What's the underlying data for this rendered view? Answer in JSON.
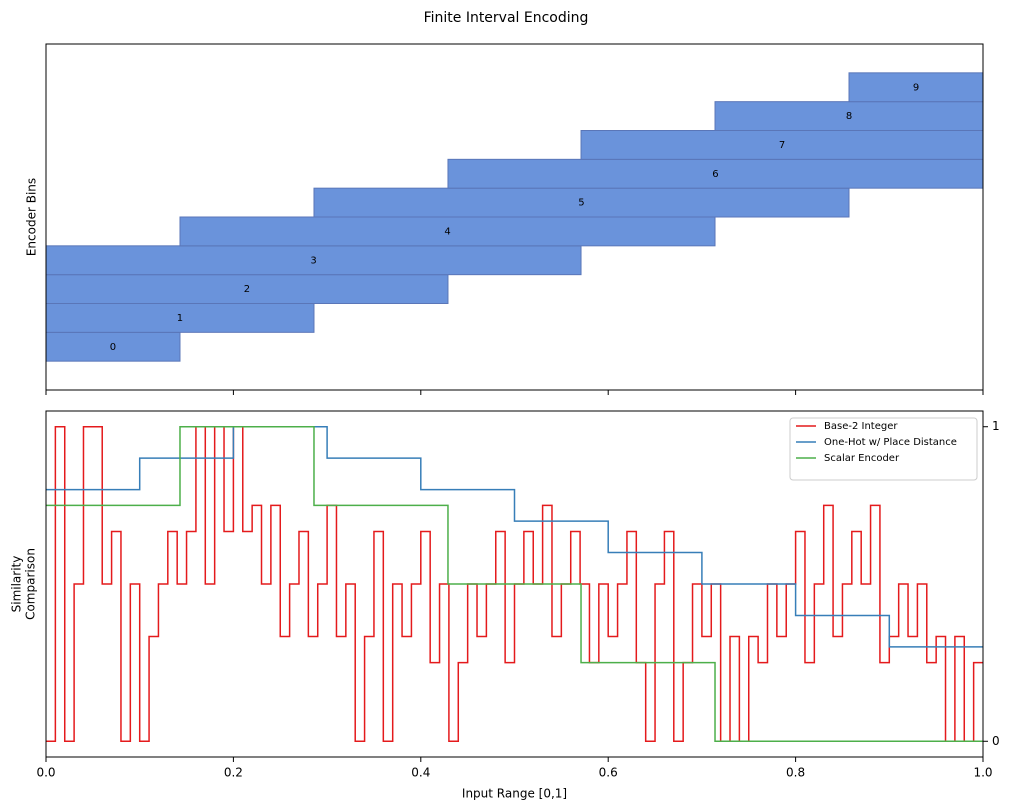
{
  "chart_data": [
    {
      "type": "interval",
      "title": "Finite Interval Encoding",
      "ylabel": "Encoder Bins",
      "categories": [
        "0",
        "1",
        "2",
        "3",
        "4",
        "5",
        "6",
        "7",
        "8",
        "9"
      ],
      "starts": [
        0,
        0,
        0,
        0,
        0.143,
        0.286,
        0.429,
        0.571,
        0.714,
        0.857
      ],
      "ends": [
        0.143,
        0.286,
        0.429,
        0.571,
        0.714,
        0.857,
        1,
        1,
        1,
        1
      ],
      "color": "#6a93db",
      "edgecolor": "#5a76b8",
      "xlim": [
        0,
        1
      ],
      "xticks": [
        0,
        0.2,
        0.4,
        0.6,
        0.8,
        1
      ],
      "ylim": [
        -1.5,
        10.5
      ]
    },
    {
      "type": "line",
      "step": "post",
      "xlabel": "Input Range [0,1]",
      "ylabel": [
        "Similarity",
        "Comparison"
      ],
      "xlim": [
        0,
        1
      ],
      "xticks": [
        {
          "value": 0,
          "label": "0.0"
        },
        0.2,
        0.4,
        0.6,
        0.8,
        {
          "value": 1,
          "label": "1.0"
        }
      ],
      "ylim": [
        -0.05,
        1.05
      ],
      "yticks": [
        0,
        1
      ],
      "yaxis_side": "right",
      "legend": "upper right",
      "series": [
        {
          "name": "Base-2 Integer",
          "color": "#e41a1c",
          "x": [
            0,
            0.01,
            0.02,
            0.03,
            0.04,
            0.05,
            0.06,
            0.07,
            0.08,
            0.09,
            0.1,
            0.11,
            0.12,
            0.13,
            0.14,
            0.15,
            0.16,
            0.17,
            0.18,
            0.19,
            0.2,
            0.21,
            0.22,
            0.23,
            0.24,
            0.25,
            0.26,
            0.27,
            0.28,
            0.29,
            0.3,
            0.31,
            0.32,
            0.33,
            0.34,
            0.35,
            0.36,
            0.37,
            0.38,
            0.39,
            0.4,
            0.41,
            0.42,
            0.43,
            0.44,
            0.45,
            0.46,
            0.47,
            0.48,
            0.49,
            0.5,
            0.51,
            0.52,
            0.53,
            0.54,
            0.55,
            0.56,
            0.57,
            0.58,
            0.59,
            0.6,
            0.61,
            0.62,
            0.63,
            0.64,
            0.65,
            0.66,
            0.67,
            0.68,
            0.69,
            0.7,
            0.71,
            0.72,
            0.73,
            0.74,
            0.75,
            0.76,
            0.77,
            0.78,
            0.79,
            0.8,
            0.81,
            0.82,
            0.83,
            0.84,
            0.85,
            0.86,
            0.87,
            0.88,
            0.89,
            0.9,
            0.91,
            0.92,
            0.93,
            0.94,
            0.95,
            0.96,
            0.97,
            0.98,
            0.99,
            1
          ],
          "values": [
            0,
            1,
            0,
            0.5,
            1,
            1,
            0.5,
            0.667,
            0,
            0.5,
            0,
            0.333,
            0.5,
            0.667,
            0.5,
            0.667,
            1,
            0.5,
            1,
            0.667,
            1,
            0.667,
            0.75,
            0.5,
            0.75,
            0.333,
            0.5,
            0.667,
            0.333,
            0.5,
            0.75,
            0.333,
            0.5,
            0,
            0.333,
            0.667,
            0,
            0.5,
            0.333,
            0.5,
            0.667,
            0.25,
            0.5,
            0,
            0.25,
            0.5,
            0.333,
            0.5,
            0.667,
            0.25,
            0.5,
            0.667,
            0.5,
            0.75,
            0.333,
            0.5,
            0.667,
            0.5,
            0.25,
            0.5,
            0.333,
            0.5,
            0.667,
            0.25,
            0,
            0.5,
            0.667,
            0,
            0.25,
            0.5,
            0.333,
            0.5,
            0,
            0.333,
            0,
            0.333,
            0.25,
            0.5,
            0.333,
            0.5,
            0.667,
            0.25,
            0.5,
            0.75,
            0.333,
            0.5,
            0.667,
            0.5,
            0.75,
            0.25,
            0.333,
            0.5,
            0.333,
            0.5,
            0.25,
            0.333,
            0,
            0.333,
            0,
            0.25,
            0.25
          ]
        },
        {
          "name": "One-Hot w/ Place Distance",
          "color": "#377eb8",
          "x": [
            0,
            0.1,
            0.2,
            0.3,
            0.4,
            0.5,
            0.6,
            0.7,
            0.8,
            0.9,
            1
          ],
          "values": [
            0.8,
            0.9,
            1,
            0.9,
            0.8,
            0.7,
            0.6,
            0.5,
            0.4,
            0.3,
            0.3
          ]
        },
        {
          "name": "Scalar Encoder",
          "color": "#4daf4a",
          "x": [
            0,
            0.143,
            0.286,
            0.429,
            0.571,
            0.714,
            1
          ],
          "values": [
            0.75,
            1,
            0.75,
            0.5,
            0.25,
            0,
            0
          ]
        }
      ]
    }
  ]
}
